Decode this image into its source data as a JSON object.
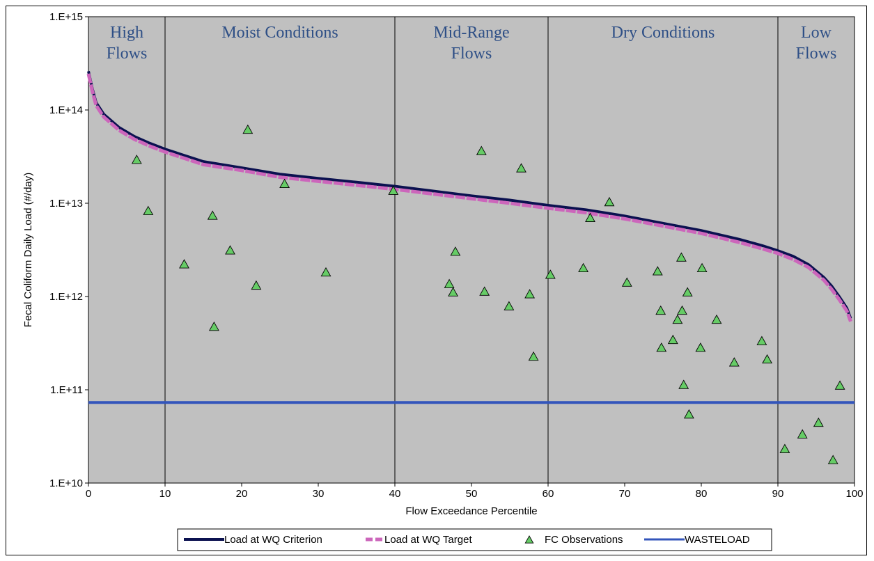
{
  "chart_data": {
    "type": "scatter",
    "xlabel": "Flow Exceedance Percentile",
    "ylabel": "Fecal Coliform Daily Load (#/day)",
    "x_ticks": [
      "0",
      "10",
      "20",
      "30",
      "40",
      "50",
      "60",
      "70",
      "80",
      "90",
      "100"
    ],
    "y_ticks": [
      "1.E+10",
      "1.E+11",
      "1.E+12",
      "1.E+13",
      "1.E+14",
      "1.E+15"
    ],
    "xlim": [
      0,
      100
    ],
    "ylim": [
      10000000000.0,
      1000000000000000.0
    ],
    "y_scale": "log",
    "grid": false,
    "legend_position": "bottom",
    "colors": {
      "plot_background": "#c0c0c0",
      "criterion_line": "#0b1150",
      "target_line": "#cc66bb",
      "observation_fill": "#66cc66",
      "wasteload_line": "#3355bb",
      "region_text": "#2e4f86"
    },
    "regions": [
      {
        "label": "High Flows",
        "lines": [
          "High",
          "Flows"
        ],
        "from": 0,
        "to": 10
      },
      {
        "label": "Moist Conditions",
        "lines": [
          "Moist Conditions"
        ],
        "from": 10,
        "to": 40
      },
      {
        "label": "Mid-Range Flows",
        "lines": [
          "Mid-Range",
          "Flows"
        ],
        "from": 40,
        "to": 60
      },
      {
        "label": "Dry Conditions",
        "lines": [
          "Dry Conditions"
        ],
        "from": 60,
        "to": 90
      },
      {
        "label": "Low Flows",
        "lines": [
          "Low",
          "Flows"
        ],
        "from": 90,
        "to": 100
      }
    ],
    "series": [
      {
        "name": "Load at WQ Criterion",
        "style": "line",
        "x": [
          0,
          0.5,
          1,
          2,
          4,
          6,
          8,
          10,
          15,
          20,
          25,
          30,
          35,
          40,
          45,
          50,
          55,
          60,
          65,
          70,
          75,
          80,
          85,
          88,
          90,
          92,
          94,
          96,
          97,
          98,
          99,
          99.5
        ],
        "y": [
          260000000000000.0,
          170000000000000.0,
          120000000000000.0,
          90000000000000.0,
          65000000000000.0,
          52000000000000.0,
          44000000000000.0,
          38000000000000.0,
          28000000000000.0,
          24000000000000.0,
          20500000000000.0,
          18500000000000.0,
          16800000000000.0,
          15200000000000.0,
          13500000000000.0,
          12000000000000.0,
          10800000000000.0,
          9500000000000.0,
          8500000000000.0,
          7300000000000.0,
          6100000000000.0,
          5100000000000.0,
          4100000000000.0,
          3500000000000.0,
          3100000000000.0,
          2700000000000.0,
          2200000000000.0,
          1600000000000.0,
          1300000000000.0,
          1000000000000.0,
          750000000000.0,
          580000000000.0
        ]
      },
      {
        "name": "Load at WQ Target",
        "style": "dashed-line",
        "x": [
          0,
          0.5,
          1,
          2,
          4,
          6,
          8,
          10,
          15,
          20,
          25,
          30,
          35,
          40,
          45,
          50,
          55,
          60,
          65,
          70,
          75,
          80,
          85,
          88,
          90,
          92,
          94,
          96,
          97,
          98,
          99,
          99.5
        ],
        "y": [
          245000000000000.0,
          160000000000000.0,
          112000000000000.0,
          84000000000000.0,
          60500000000000.0,
          48500000000000.0,
          41000000000000.0,
          35500000000000.0,
          26000000000000.0,
          22500000000000.0,
          19000000000000.0,
          17200000000000.0,
          15600000000000.0,
          14100000000000.0,
          12600000000000.0,
          11200000000000.0,
          10000000000000.0,
          8850000000000.0,
          7900000000000.0,
          6800000000000.0,
          5700000000000.0,
          4750000000000.0,
          3800000000000.0,
          3250000000000.0,
          2900000000000.0,
          2500000000000.0,
          2050000000000.0,
          1500000000000.0,
          1200000000000.0,
          930000000000.0,
          700000000000.0,
          540000000000.0
        ]
      },
      {
        "name": "FC Observations",
        "style": "triangle-markers",
        "x": [
          6.3,
          7.8,
          12.5,
          16.2,
          16.4,
          18.5,
          20.8,
          21.9,
          25.6,
          31.0,
          39.8,
          47.1,
          47.6,
          47.9,
          51.3,
          51.7,
          54.9,
          56.5,
          57.6,
          58.1,
          60.3,
          64.6,
          65.5,
          68.0,
          70.3,
          74.3,
          74.7,
          74.8,
          76.3,
          76.9,
          77.4,
          77.5,
          77.7,
          78.2,
          78.4,
          79.9,
          80.1,
          82.0,
          84.3,
          87.9,
          88.6,
          90.9,
          93.2,
          95.3,
          97.2,
          98.1
        ],
        "y": [
          29000000000000.0,
          8200000000000.0,
          2200000000000.0,
          7300000000000.0,
          470000000000.0,
          3100000000000.0,
          61000000000000.0,
          1300000000000.0,
          16000000000000.0,
          1800000000000.0,
          13500000000000.0,
          1350000000000.0,
          1100000000000.0,
          3000000000000.0,
          36000000000000.0,
          1120000000000.0,
          780000000000.0,
          23500000000000.0,
          1050000000000.0,
          225000000000.0,
          1700000000000.0,
          2000000000000.0,
          6900000000000.0,
          10200000000000.0,
          1400000000000.0,
          1850000000000.0,
          700000000000.0,
          280000000000.0,
          340000000000.0,
          560000000000.0,
          2600000000000.0,
          700000000000.0,
          112000000000.0,
          1100000000000.0,
          54000000000.0,
          280000000000.0,
          2000000000000.0,
          560000000000.0,
          195000000000.0,
          330000000000.0,
          210000000000.0,
          23000000000.0,
          33000000000.0,
          44000000000.0,
          17500000000.0,
          110000000000.0
        ]
      },
      {
        "name": "WASTELOAD",
        "style": "line",
        "x": [
          0,
          100
        ],
        "y": [
          73000000000.0,
          73000000000.0
        ]
      }
    ]
  }
}
